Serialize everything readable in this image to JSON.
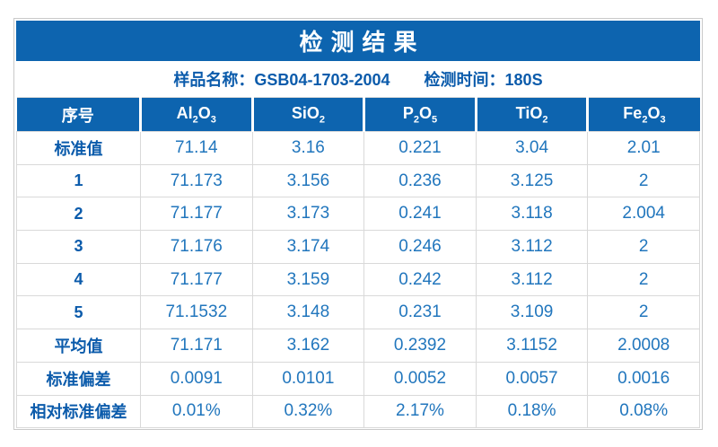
{
  "header": {
    "title": "检测结果"
  },
  "subtitle": {
    "sample_label": "样品名称：",
    "sample_value": "GSB04-1703-2004",
    "time_label": "检测时间：",
    "time_value": "180S"
  },
  "table": {
    "row_header_label": "序号",
    "columns": [
      {
        "name": "Al2O3",
        "parts": [
          {
            "t": "Al"
          },
          {
            "t": "2",
            "sub": true
          },
          {
            "t": "O"
          },
          {
            "t": "3",
            "sub": true
          }
        ]
      },
      {
        "name": "SiO2",
        "parts": [
          {
            "t": "SiO"
          },
          {
            "t": "2",
            "sub": true
          }
        ]
      },
      {
        "name": "P2O5",
        "parts": [
          {
            "t": "P"
          },
          {
            "t": "2",
            "sub": true
          },
          {
            "t": "O"
          },
          {
            "t": "5",
            "sub": true
          }
        ]
      },
      {
        "name": "TiO2",
        "parts": [
          {
            "t": "TiO"
          },
          {
            "t": "2",
            "sub": true
          }
        ]
      },
      {
        "name": "Fe2O3",
        "parts": [
          {
            "t": "Fe"
          },
          {
            "t": "2",
            "sub": true
          },
          {
            "t": "O"
          },
          {
            "t": "3",
            "sub": true
          }
        ]
      }
    ],
    "rows": [
      {
        "label": "标准值",
        "values": [
          "71.14",
          "3.16",
          "0.221",
          "3.04",
          "2.01"
        ]
      },
      {
        "label": "1",
        "values": [
          "71.173",
          "3.156",
          "0.236",
          "3.125",
          "2"
        ]
      },
      {
        "label": "2",
        "values": [
          "71.177",
          "3.173",
          "0.241",
          "3.118",
          "2.004"
        ]
      },
      {
        "label": "3",
        "values": [
          "71.176",
          "3.174",
          "0.246",
          "3.112",
          "2"
        ]
      },
      {
        "label": "4",
        "values": [
          "71.177",
          "3.159",
          "0.242",
          "3.112",
          "2"
        ]
      },
      {
        "label": "5",
        "values": [
          "71.1532",
          "3.148",
          "0.231",
          "3.109",
          "2"
        ]
      },
      {
        "label": "平均值",
        "values": [
          "71.171",
          "3.162",
          "0.2392",
          "3.1152",
          "2.0008"
        ]
      },
      {
        "label": "标准偏差",
        "values": [
          "0.0091",
          "0.0101",
          "0.0052",
          "0.0057",
          "0.0016"
        ]
      },
      {
        "label": "相对标准偏差",
        "values": [
          "0.01%",
          "0.32%",
          "2.17%",
          "0.18%",
          "0.08%"
        ]
      }
    ]
  },
  "colors": {
    "primary_blue": "#0d64af",
    "label_blue": "#0b5bab",
    "value_blue": "#2176bd",
    "grid_line": "#d9d9d9",
    "outer_border": "#c9c9c9"
  }
}
